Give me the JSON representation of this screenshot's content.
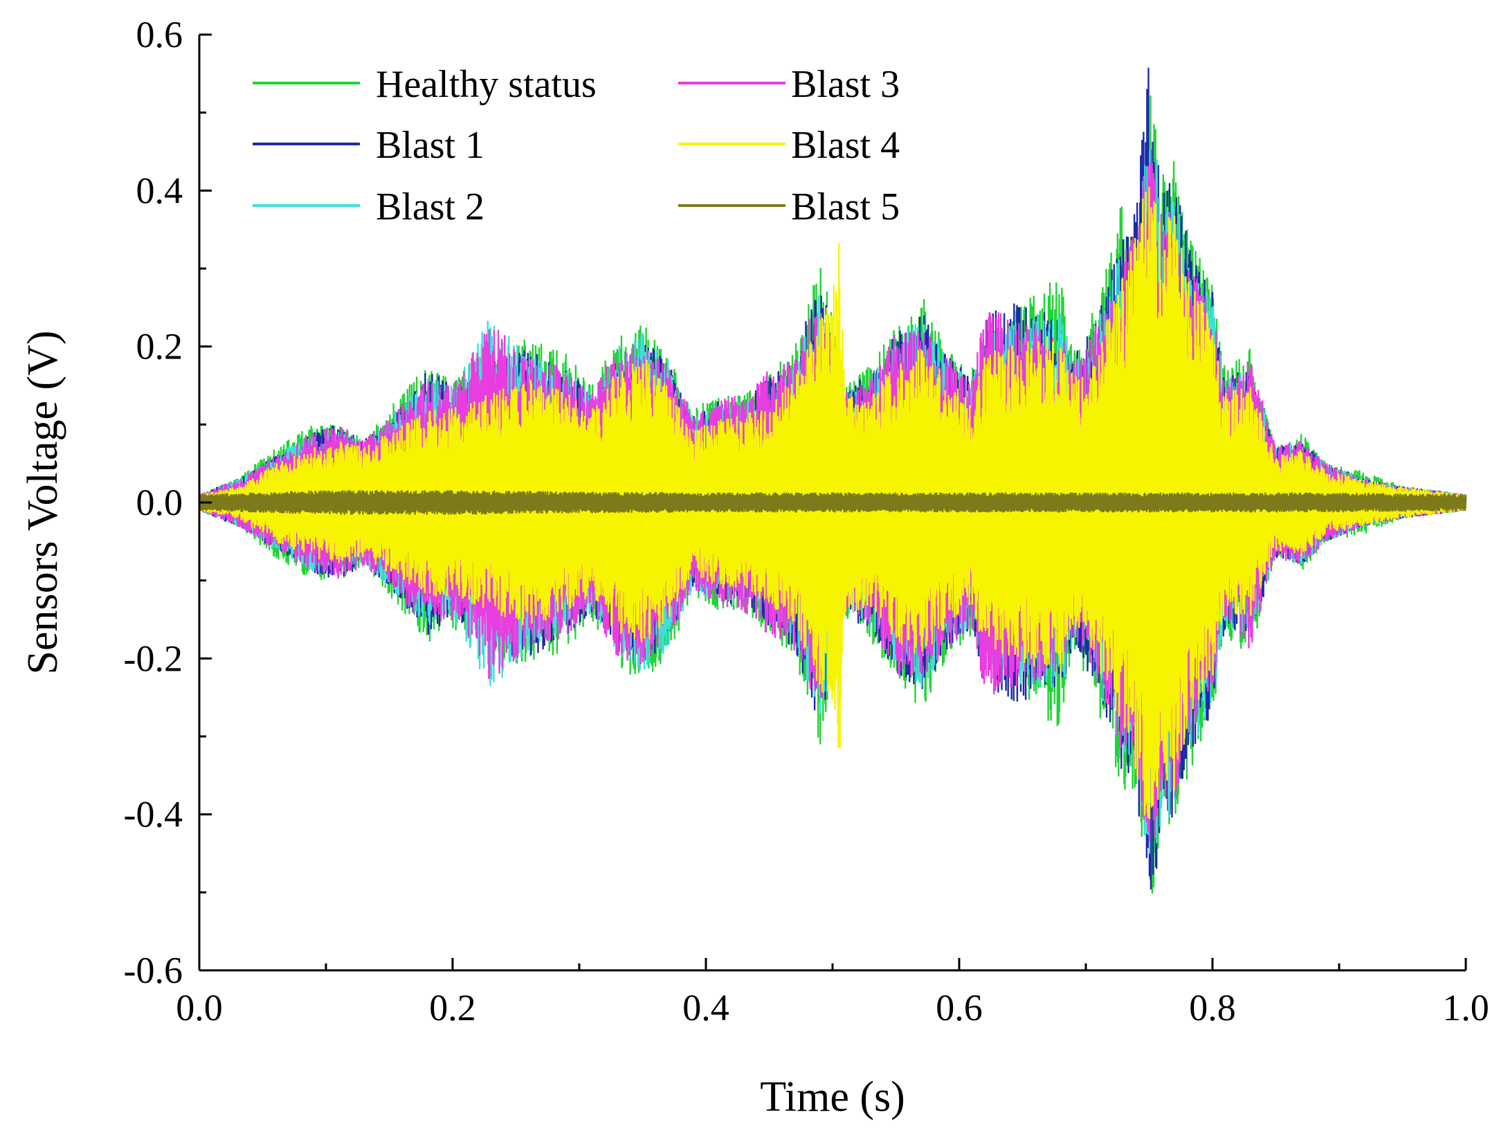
{
  "chart_data": {
    "type": "line",
    "title": "",
    "xlabel": "Time (s)",
    "ylabel": "Sensors Voltage (V)",
    "xlim": [
      0.0,
      1.0
    ],
    "ylim": [
      -0.6,
      0.6
    ],
    "xticks": [
      "0.0",
      "0.2",
      "0.4",
      "0.6",
      "0.8",
      "1.0"
    ],
    "yticks": [
      "-0.6",
      "-0.4",
      "-0.2",
      "0.0",
      "0.2",
      "0.4",
      "0.6"
    ],
    "grid": false,
    "legend": {
      "position": "top-left",
      "columns": 2
    },
    "series": [
      {
        "name": "Healthy status",
        "color": "#22d336",
        "envelope": {
          "t": [
            0.0,
            0.03,
            0.06,
            0.09,
            0.11,
            0.13,
            0.15,
            0.18,
            0.2,
            0.23,
            0.26,
            0.29,
            0.31,
            0.33,
            0.35,
            0.37,
            0.39,
            0.41,
            0.43,
            0.45,
            0.47,
            0.49,
            0.5,
            0.51,
            0.53,
            0.55,
            0.57,
            0.59,
            0.61,
            0.62,
            0.64,
            0.66,
            0.68,
            0.69,
            0.7,
            0.72,
            0.73,
            0.74,
            0.75,
            0.76,
            0.77,
            0.78,
            0.8,
            0.81,
            0.83,
            0.85,
            0.87,
            0.89,
            0.92,
            0.95,
            1.0
          ],
          "amp": [
            0.01,
            0.03,
            0.07,
            0.1,
            0.1,
            0.08,
            0.12,
            0.18,
            0.16,
            0.2,
            0.21,
            0.19,
            0.15,
            0.21,
            0.23,
            0.2,
            0.12,
            0.14,
            0.14,
            0.17,
            0.2,
            0.32,
            0.24,
            0.15,
            0.18,
            0.23,
            0.27,
            0.2,
            0.17,
            0.21,
            0.24,
            0.27,
            0.29,
            0.2,
            0.22,
            0.32,
            0.4,
            0.36,
            0.55,
            0.42,
            0.44,
            0.36,
            0.28,
            0.17,
            0.2,
            0.07,
            0.09,
            0.05,
            0.04,
            0.02,
            0.01
          ]
        }
      },
      {
        "name": "Blast 1",
        "color": "#1c2ba8",
        "envelope": {
          "t": [
            0.0,
            0.03,
            0.06,
            0.09,
            0.11,
            0.13,
            0.15,
            0.18,
            0.2,
            0.23,
            0.26,
            0.29,
            0.31,
            0.33,
            0.35,
            0.37,
            0.39,
            0.41,
            0.43,
            0.45,
            0.47,
            0.49,
            0.5,
            0.51,
            0.53,
            0.55,
            0.57,
            0.59,
            0.61,
            0.62,
            0.64,
            0.66,
            0.68,
            0.69,
            0.7,
            0.72,
            0.73,
            0.74,
            0.75,
            0.76,
            0.77,
            0.78,
            0.8,
            0.81,
            0.83,
            0.85,
            0.87,
            0.89,
            0.92,
            0.95,
            1.0
          ],
          "amp": [
            0.01,
            0.03,
            0.06,
            0.09,
            0.1,
            0.08,
            0.11,
            0.17,
            0.15,
            0.19,
            0.2,
            0.17,
            0.14,
            0.19,
            0.21,
            0.18,
            0.11,
            0.13,
            0.13,
            0.16,
            0.19,
            0.29,
            0.22,
            0.14,
            0.17,
            0.22,
            0.25,
            0.19,
            0.16,
            0.24,
            0.26,
            0.25,
            0.24,
            0.19,
            0.21,
            0.3,
            0.36,
            0.38,
            0.58,
            0.4,
            0.42,
            0.34,
            0.27,
            0.16,
            0.18,
            0.07,
            0.08,
            0.05,
            0.03,
            0.02,
            0.01
          ]
        }
      },
      {
        "name": "Blast 2",
        "color": "#3fe0d8",
        "envelope": {
          "t": [
            0.0,
            0.03,
            0.06,
            0.09,
            0.11,
            0.13,
            0.15,
            0.18,
            0.2,
            0.23,
            0.26,
            0.29,
            0.31,
            0.33,
            0.35,
            0.37,
            0.39,
            0.41,
            0.43,
            0.45,
            0.47,
            0.49,
            0.5,
            0.51,
            0.53,
            0.55,
            0.57,
            0.59,
            0.61,
            0.62,
            0.64,
            0.66,
            0.68,
            0.69,
            0.7,
            0.72,
            0.73,
            0.74,
            0.75,
            0.76,
            0.77,
            0.78,
            0.8,
            0.81,
            0.83,
            0.85,
            0.87,
            0.89,
            0.92,
            0.95,
            1.0
          ],
          "amp": [
            0.01,
            0.03,
            0.06,
            0.09,
            0.09,
            0.08,
            0.11,
            0.16,
            0.15,
            0.24,
            0.19,
            0.17,
            0.14,
            0.2,
            0.22,
            0.19,
            0.11,
            0.13,
            0.13,
            0.15,
            0.18,
            0.28,
            0.22,
            0.14,
            0.16,
            0.21,
            0.24,
            0.19,
            0.16,
            0.22,
            0.23,
            0.24,
            0.25,
            0.18,
            0.2,
            0.28,
            0.34,
            0.35,
            0.52,
            0.4,
            0.41,
            0.33,
            0.26,
            0.16,
            0.17,
            0.07,
            0.08,
            0.05,
            0.03,
            0.02,
            0.01
          ]
        }
      },
      {
        "name": "Blast 3",
        "color": "#e83de0",
        "envelope": {
          "t": [
            0.0,
            0.03,
            0.06,
            0.09,
            0.11,
            0.13,
            0.15,
            0.18,
            0.2,
            0.23,
            0.26,
            0.29,
            0.31,
            0.33,
            0.35,
            0.37,
            0.39,
            0.41,
            0.43,
            0.45,
            0.47,
            0.49,
            0.5,
            0.51,
            0.53,
            0.55,
            0.57,
            0.59,
            0.61,
            0.62,
            0.64,
            0.66,
            0.68,
            0.69,
            0.7,
            0.72,
            0.73,
            0.74,
            0.75,
            0.76,
            0.77,
            0.78,
            0.8,
            0.81,
            0.83,
            0.85,
            0.87,
            0.89,
            0.92,
            0.95,
            1.0
          ],
          "amp": [
            0.01,
            0.03,
            0.06,
            0.09,
            0.1,
            0.08,
            0.11,
            0.16,
            0.15,
            0.23,
            0.19,
            0.17,
            0.14,
            0.2,
            0.21,
            0.18,
            0.11,
            0.13,
            0.14,
            0.17,
            0.19,
            0.27,
            0.21,
            0.14,
            0.16,
            0.22,
            0.23,
            0.19,
            0.16,
            0.25,
            0.24,
            0.23,
            0.22,
            0.18,
            0.2,
            0.27,
            0.33,
            0.35,
            0.48,
            0.38,
            0.39,
            0.32,
            0.25,
            0.15,
            0.19,
            0.07,
            0.08,
            0.05,
            0.03,
            0.02,
            0.01
          ]
        }
      },
      {
        "name": "Blast 4",
        "color": "#f7f400",
        "envelope": {
          "t": [
            0.0,
            0.03,
            0.06,
            0.09,
            0.11,
            0.13,
            0.15,
            0.18,
            0.2,
            0.23,
            0.26,
            0.29,
            0.31,
            0.33,
            0.35,
            0.37,
            0.39,
            0.41,
            0.43,
            0.45,
            0.47,
            0.49,
            0.5,
            0.505,
            0.51,
            0.53,
            0.55,
            0.57,
            0.59,
            0.61,
            0.62,
            0.64,
            0.66,
            0.68,
            0.69,
            0.7,
            0.72,
            0.73,
            0.74,
            0.75,
            0.76,
            0.77,
            0.78,
            0.8,
            0.81,
            0.83,
            0.85,
            0.87,
            0.89,
            0.92,
            0.95,
            1.0
          ],
          "amp": [
            0.01,
            0.02,
            0.05,
            0.07,
            0.08,
            0.07,
            0.09,
            0.12,
            0.12,
            0.14,
            0.16,
            0.14,
            0.12,
            0.17,
            0.19,
            0.15,
            0.09,
            0.11,
            0.11,
            0.13,
            0.16,
            0.24,
            0.26,
            0.38,
            0.14,
            0.14,
            0.18,
            0.2,
            0.16,
            0.13,
            0.19,
            0.2,
            0.21,
            0.22,
            0.16,
            0.18,
            0.25,
            0.3,
            0.35,
            0.43,
            0.36,
            0.37,
            0.3,
            0.23,
            0.14,
            0.15,
            0.06,
            0.07,
            0.04,
            0.03,
            0.02,
            0.01
          ]
        }
      },
      {
        "name": "Blast 5",
        "color": "#7d7a1c",
        "envelope": {
          "t": [
            0.0,
            0.1,
            0.2,
            0.3,
            0.4,
            0.5,
            0.6,
            0.7,
            0.8,
            0.9,
            1.0
          ],
          "amp": [
            0.01,
            0.015,
            0.015,
            0.013,
            0.012,
            0.012,
            0.012,
            0.012,
            0.012,
            0.012,
            0.01
          ]
        }
      }
    ]
  }
}
